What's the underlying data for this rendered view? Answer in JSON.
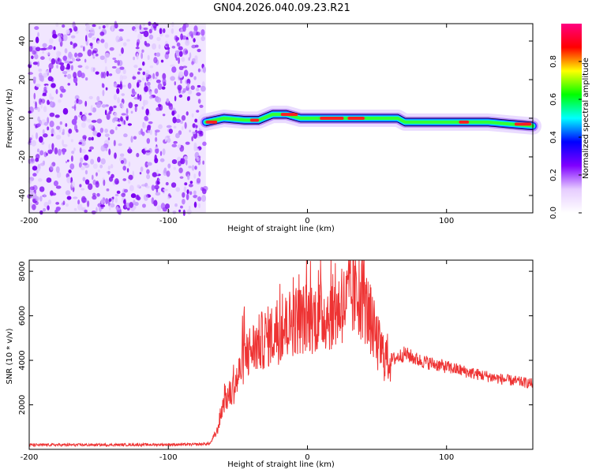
{
  "title": "GN04.2026.040.09.23.R21",
  "chart_data": [
    {
      "type": "heatmap",
      "name": "spectrogram",
      "xlabel": "Height of straight line (km)",
      "ylabel": "Frequency (Hz)",
      "xlim": [
        -200,
        162
      ],
      "ylim": [
        -49,
        49
      ],
      "xticks": [
        -200,
        -100,
        0,
        100
      ],
      "yticks": [
        -40,
        -20,
        0,
        20,
        40
      ],
      "noise_region_x": [
        -200,
        -73
      ],
      "ridge": [
        {
          "x": -73,
          "y": -2
        },
        {
          "x": -60,
          "y": 0
        },
        {
          "x": -45,
          "y": -1
        },
        {
          "x": -35,
          "y": -1
        },
        {
          "x": -25,
          "y": 2
        },
        {
          "x": -15,
          "y": 2
        },
        {
          "x": -5,
          "y": 0
        },
        {
          "x": 10,
          "y": 0
        },
        {
          "x": 30,
          "y": 0
        },
        {
          "x": 50,
          "y": 0
        },
        {
          "x": 65,
          "y": 0
        },
        {
          "x": 70,
          "y": -2
        },
        {
          "x": 100,
          "y": -2
        },
        {
          "x": 130,
          "y": -2
        },
        {
          "x": 145,
          "y": -3
        },
        {
          "x": 162,
          "y": -4
        }
      ],
      "colorbar": {
        "label": "Normalized spectral amplitude",
        "range": [
          0,
          1
        ],
        "ticks": [
          "0.0",
          "0.2",
          "0.4",
          "0.6",
          "0.8"
        ],
        "colors": [
          "#ffffff",
          "#e6ccff",
          "#7f00ff",
          "#0000ff",
          "#00ffff",
          "#00ff00",
          "#ffff00",
          "#ff0000",
          "#ff0080"
        ]
      }
    },
    {
      "type": "line",
      "name": "snr",
      "xlabel": "Height of straight line (km)",
      "ylabel": "SNR (10 * v/v)",
      "xlim": [
        -200,
        162
      ],
      "ylim": [
        0,
        8500
      ],
      "xticks": [
        -200,
        -100,
        0,
        100
      ],
      "yticks": [
        2000,
        4000,
        6000,
        8000
      ],
      "color": "#ee3333",
      "series_envelope": [
        {
          "x": -200,
          "y": 200
        },
        {
          "x": -150,
          "y": 200
        },
        {
          "x": -80,
          "y": 220
        },
        {
          "x": -70,
          "y": 260
        },
        {
          "x": -65,
          "y": 800
        },
        {
          "x": -60,
          "y": 2200
        },
        {
          "x": -55,
          "y": 2500
        },
        {
          "x": -50,
          "y": 3200
        },
        {
          "x": -45,
          "y": 4200
        },
        {
          "x": -40,
          "y": 4500
        },
        {
          "x": -30,
          "y": 5000
        },
        {
          "x": -20,
          "y": 5300
        },
        {
          "x": -10,
          "y": 5800
        },
        {
          "x": 0,
          "y": 5900
        },
        {
          "x": 10,
          "y": 6000
        },
        {
          "x": 20,
          "y": 6200
        },
        {
          "x": 30,
          "y": 6700
        },
        {
          "x": 35,
          "y": 6900
        },
        {
          "x": 40,
          "y": 6700
        },
        {
          "x": 45,
          "y": 5900
        },
        {
          "x": 50,
          "y": 4800
        },
        {
          "x": 55,
          "y": 4200
        },
        {
          "x": 60,
          "y": 4000
        },
        {
          "x": 70,
          "y": 4300
        },
        {
          "x": 80,
          "y": 4000
        },
        {
          "x": 100,
          "y": 3700
        },
        {
          "x": 120,
          "y": 3400
        },
        {
          "x": 140,
          "y": 3150
        },
        {
          "x": 162,
          "y": 2950
        }
      ]
    }
  ]
}
